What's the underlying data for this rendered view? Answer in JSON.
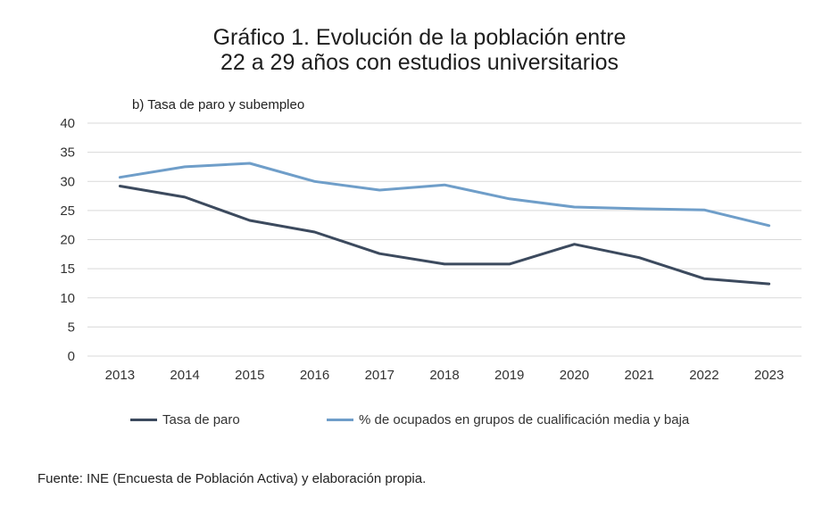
{
  "title_line1": "Gráfico 1. Evolución de la población entre",
  "title_line2": "22 a 29 años con estudios universitarios",
  "subtitle": "b) Tasa de paro y subempleo",
  "source": "Fuente: INE (Encuesta de Población Activa) y elaboración propia.",
  "colors": {
    "series1": "#3c4a5e",
    "series2": "#6f9ec9",
    "grid": "#d9d9d9"
  },
  "chart_data": {
    "type": "line",
    "title": "Gráfico 1. Evolución de la población entre 22 a 29 años con estudios universitarios",
    "subtitle": "b) Tasa de paro y subempleo",
    "xlabel": "",
    "ylabel": "",
    "x": [
      "2013",
      "2014",
      "2015",
      "2016",
      "2017",
      "2018",
      "2019",
      "2020",
      "2021",
      "2022",
      "2023"
    ],
    "ylim": [
      0,
      40
    ],
    "yticks": [
      "0",
      "5",
      "10",
      "15",
      "20",
      "25",
      "30",
      "35",
      "40"
    ],
    "grid": true,
    "legend_position": "bottom",
    "series": [
      {
        "name": "Tasa de paro",
        "color": "#3c4a5e",
        "values": [
          29.2,
          27.3,
          23.3,
          21.3,
          17.6,
          15.8,
          15.8,
          19.2,
          16.9,
          13.3,
          12.4
        ]
      },
      {
        "name": "% de ocupados en grupos de cualificación media y baja",
        "color": "#6f9ec9",
        "values": [
          30.7,
          32.5,
          33.1,
          30.0,
          28.5,
          29.4,
          27.0,
          25.6,
          25.3,
          25.1,
          22.4
        ]
      }
    ]
  }
}
